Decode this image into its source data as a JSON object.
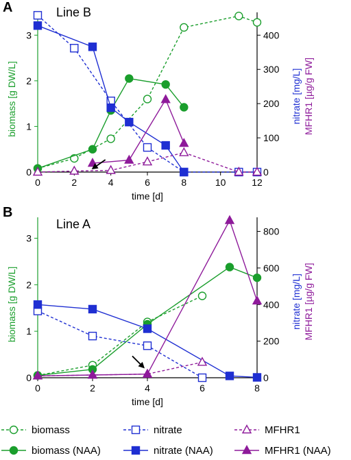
{
  "colors": {
    "green": "#1a9e2c",
    "blue": "#1f2fd2",
    "purple": "#8e1a9a",
    "black": "#000000"
  },
  "legend": [
    {
      "label": "biomass",
      "series": "biomass",
      "color": "#1a9e2c",
      "marker": "circle",
      "filled": false,
      "dashed": true
    },
    {
      "label": "nitrate",
      "series": "nitrate",
      "color": "#1f2fd2",
      "marker": "square",
      "filled": false,
      "dashed": true
    },
    {
      "label": "MFHR1",
      "series": "MFHR1",
      "color": "#8e1a9a",
      "marker": "triangle",
      "filled": false,
      "dashed": true
    },
    {
      "label": "biomass (NAA)",
      "series": "biomass (NAA)",
      "color": "#1a9e2c",
      "marker": "circle",
      "filled": true,
      "dashed": false
    },
    {
      "label": "nitrate (NAA)",
      "series": "nitrate (NAA)",
      "color": "#1f2fd2",
      "marker": "square",
      "filled": true,
      "dashed": false
    },
    {
      "label": "MFHR1 (NAA)",
      "series": "MFHR1 (NAA)",
      "color": "#8e1a9a",
      "marker": "triangle",
      "filled": true,
      "dashed": false
    }
  ],
  "chart_data": [
    {
      "panel_label": "A",
      "title": "Line B",
      "type": "line",
      "xlabel": "time [d]",
      "ylabel_left": "biomass [g DW/L]",
      "ylabel_right": [
        "nitrate [mg/L]",
        "MFHR1 [µg/g FW]"
      ],
      "xlim": [
        0,
        12
      ],
      "xticks": [
        "0",
        "2",
        "4",
        "6",
        "8",
        "10",
        "12"
      ],
      "ylim_left": [
        0,
        3.5
      ],
      "yticks_left": [
        "0",
        "1",
        "2",
        "3"
      ],
      "ylim_right": [
        0,
        466.7
      ],
      "yticks_right": [
        "0",
        "100",
        "200",
        "300",
        "400"
      ],
      "annotation": "arrow pointing to day 3",
      "series": [
        {
          "name": "biomass",
          "axis": "left",
          "color": "#1a9e2c",
          "marker": "circle",
          "filled": false,
          "dashed": true,
          "x": [
            0,
            2,
            4,
            6,
            8,
            11,
            12
          ],
          "y": [
            0.08,
            0.3,
            0.73,
            1.6,
            3.17,
            3.42,
            3.28
          ]
        },
        {
          "name": "biomass (NAA)",
          "axis": "left",
          "color": "#1a9e2c",
          "marker": "circle",
          "filled": true,
          "dashed": false,
          "x": [
            0,
            3,
            4,
            5,
            7,
            8
          ],
          "y": [
            0.08,
            0.5,
            1.35,
            2.05,
            1.92,
            1.42
          ]
        },
        {
          "name": "nitrate",
          "axis": "right",
          "color": "#1f2fd2",
          "marker": "square",
          "filled": false,
          "dashed": true,
          "x": [
            0,
            2,
            4,
            6,
            8,
            11,
            12
          ],
          "y": [
            458,
            362,
            208,
            72,
            0,
            0,
            0
          ]
        },
        {
          "name": "nitrate (NAA)",
          "axis": "right",
          "color": "#1f2fd2",
          "marker": "square",
          "filled": true,
          "dashed": false,
          "x": [
            0,
            3,
            4,
            5,
            7,
            8
          ],
          "y": [
            428,
            366,
            188,
            146,
            78,
            0
          ]
        },
        {
          "name": "MFHR1",
          "axis": "right",
          "color": "#8e1a9a",
          "marker": "triangle",
          "filled": false,
          "dashed": true,
          "x": [
            0,
            2,
            4,
            6,
            8,
            11,
            12
          ],
          "y": [
            0,
            3,
            5,
            30,
            57,
            0,
            0
          ]
        },
        {
          "name": "MFHR1 (NAA)",
          "axis": "right",
          "color": "#8e1a9a",
          "marker": "triangle",
          "filled": true,
          "dashed": false,
          "x": [
            3,
            5,
            7,
            8
          ],
          "y": [
            26,
            35,
            212,
            84
          ]
        }
      ]
    },
    {
      "panel_label": "B",
      "title": "Line A",
      "type": "line",
      "xlabel": "time [d]",
      "ylabel_left": "biomass [g DW/L]",
      "ylabel_right": [
        "nitrate [mg/L]",
        "MFHR1 [µg/g FW]"
      ],
      "xlim": [
        0,
        8
      ],
      "xticks": [
        "0",
        "2",
        "4",
        "6",
        "8"
      ],
      "ylim_left": [
        0,
        3.45
      ],
      "yticks_left": [
        "0",
        "1",
        "2",
        "3"
      ],
      "ylim_right": [
        0,
        877
      ],
      "yticks_right": [
        "0",
        "200",
        "400",
        "600",
        "800"
      ],
      "annotation": "arrow pointing to day 4",
      "series": [
        {
          "name": "biomass",
          "axis": "left",
          "color": "#1a9e2c",
          "marker": "circle",
          "filled": false,
          "dashed": true,
          "x": [
            0,
            2,
            4,
            6
          ],
          "y": [
            0.05,
            0.27,
            1.2,
            1.76
          ]
        },
        {
          "name": "biomass (NAA)",
          "axis": "left",
          "color": "#1a9e2c",
          "marker": "circle",
          "filled": true,
          "dashed": false,
          "x": [
            0,
            2,
            4,
            7,
            8
          ],
          "y": [
            0.05,
            0.18,
            1.15,
            2.38,
            2.15
          ]
        },
        {
          "name": "nitrate",
          "axis": "right",
          "color": "#1f2fd2",
          "marker": "square",
          "filled": false,
          "dashed": true,
          "x": [
            0,
            2,
            4,
            6
          ],
          "y": [
            365,
            228,
            175,
            0
          ]
        },
        {
          "name": "nitrate (NAA)",
          "axis": "right",
          "color": "#1f2fd2",
          "marker": "square",
          "filled": true,
          "dashed": false,
          "x": [
            0,
            2,
            4,
            7,
            8
          ],
          "y": [
            400,
            375,
            268,
            10,
            2
          ]
        },
        {
          "name": "MFHR1",
          "axis": "right",
          "color": "#8e1a9a",
          "marker": "triangle",
          "filled": false,
          "dashed": true,
          "x": [
            0,
            2,
            4,
            6
          ],
          "y": [
            10,
            15,
            20,
            85
          ]
        },
        {
          "name": "MFHR1 (NAA)",
          "axis": "right",
          "color": "#8e1a9a",
          "marker": "triangle",
          "filled": true,
          "dashed": false,
          "x": [
            0,
            2,
            4,
            7,
            8
          ],
          "y": [
            10,
            15,
            20,
            860,
            420
          ]
        }
      ]
    }
  ]
}
